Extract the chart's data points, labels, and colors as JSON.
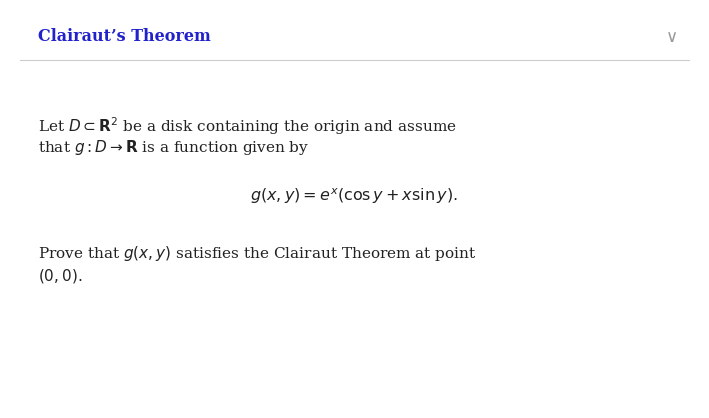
{
  "title": "Clairaut’s Theorem",
  "title_color": "#2222cc",
  "title_fontsize": 11.5,
  "background_color": "#ffffff",
  "chevron_color": "#999999",
  "line1": "Let $D \\subset \\mathbf{R}^2$ be a disk containing the origin and assume",
  "line2": "that $g : D \\rightarrow \\mathbf{R}$ is a function given by",
  "formula": "$g(x,y) = e^{x}(\\cos y + x\\sin y).$",
  "line3": "Prove that $g(x,y)$ satisfies the Clairaut Theorem at point",
  "line4": "$(0,0).$",
  "text_fontsize": 11,
  "formula_fontsize": 11.5,
  "chevron_fontsize": 12,
  "separator_color": "#cccccc",
  "text_color": "#222222"
}
